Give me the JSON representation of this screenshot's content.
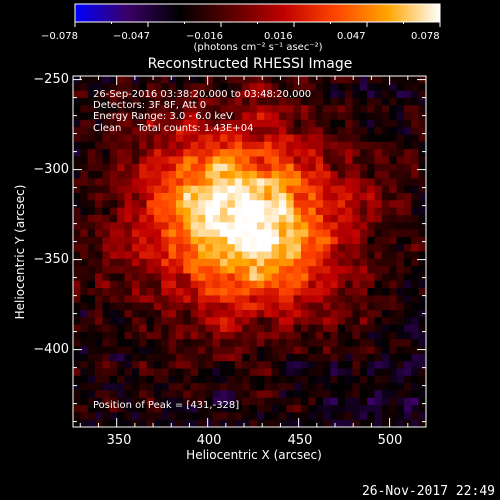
{
  "colorbar": {
    "ticks": [
      "−0.078",
      "−0.047",
      "−0.016",
      "0.016",
      "0.047",
      "0.078"
    ],
    "unit_label": "(photons cm⁻² s⁻¹ asec⁻²)",
    "colors": [
      "#0000ff",
      "#3a0068",
      "#000000",
      "#5a0000",
      "#c00000",
      "#ff4500",
      "#ffa500",
      "#ffffff"
    ]
  },
  "chart_data": {
    "type": "heatmap",
    "title": "Reconstructed RHESSI Image",
    "xlabel": "Heliocentric X (arcsec)",
    "ylabel": "Heliocentric Y (arcsec)",
    "xlim": [
      326,
      520
    ],
    "ylim": [
      -443,
      -248
    ],
    "xticks": [
      350,
      400,
      450,
      500
    ],
    "yticks": [
      -250,
      -300,
      -350,
      -400
    ],
    "peak": [
      431,
      -328
    ],
    "value_range": [
      -0.078,
      0.078
    ]
  },
  "annotations": {
    "time_range": "26-Sep-2016 03:38:20.000 to 03:48:20.000",
    "detectors": "Detectors: 3F 8F, Att 0",
    "energy_range": "Energy Range: 3.0 - 6.0 keV",
    "method_counts": "Clean     Total counts: 1.43E+04",
    "peak_position": "Position of Peak = [431,-328]"
  },
  "timestamp": "26-Nov-2017 22:49"
}
